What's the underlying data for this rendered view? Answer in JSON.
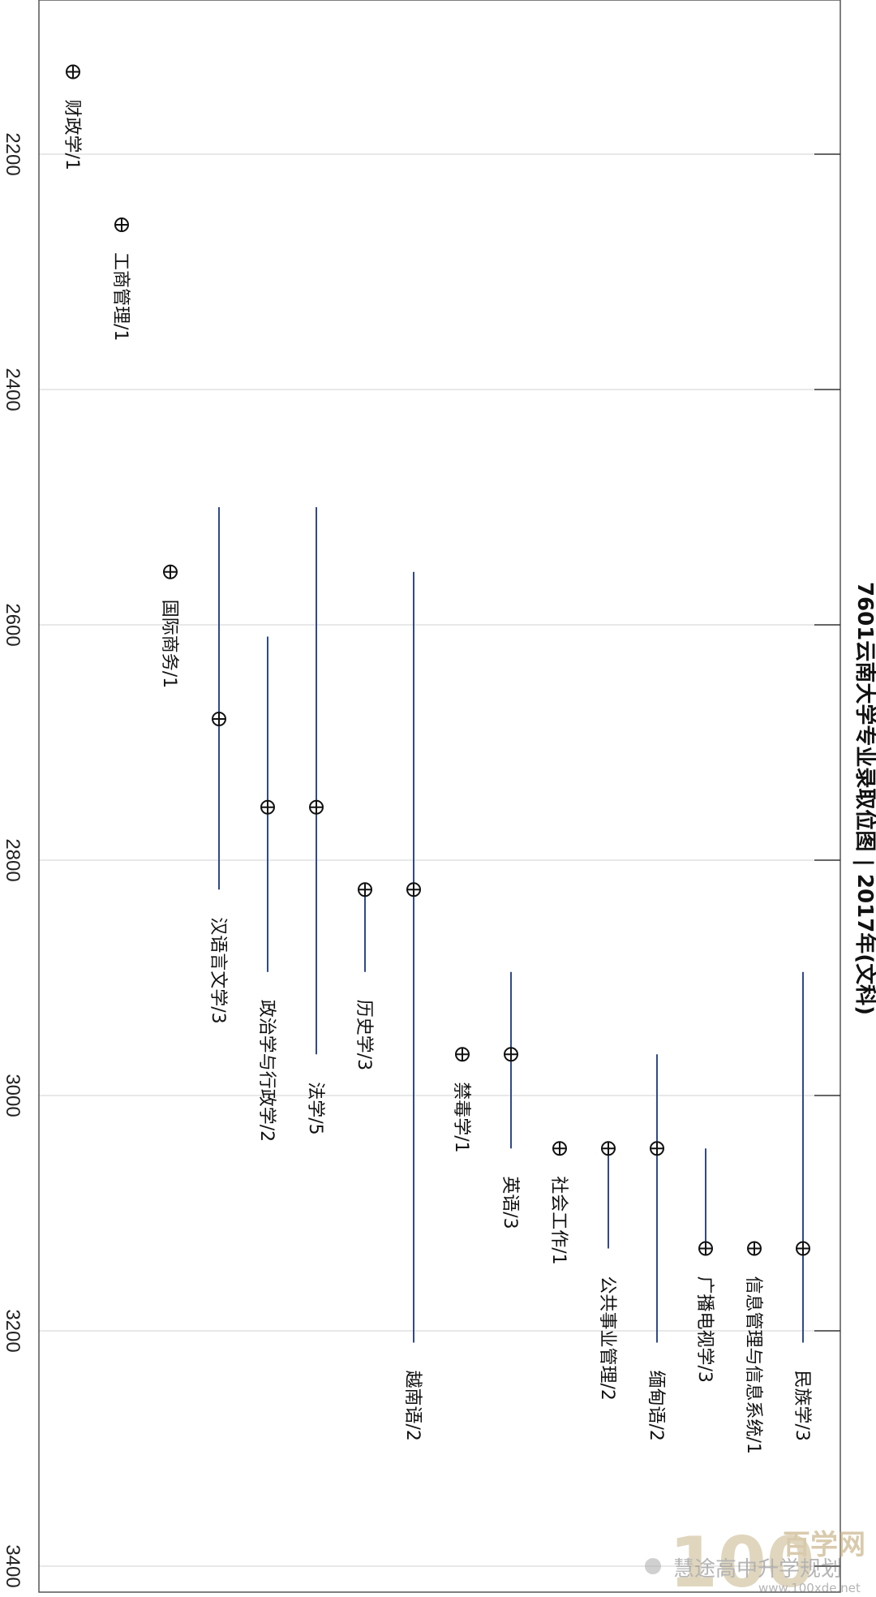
{
  "chart_data": {
    "type": "scatter",
    "title": "7601云南大学专业录取位图 | 2017年(文科)",
    "xlabel": "",
    "ylabel": "",
    "orientation": "rotated-90",
    "value_axis": {
      "range": [
        2060,
        3400
      ],
      "ticks": [
        2200,
        2400,
        2600,
        2800,
        3000,
        3200,
        3400
      ],
      "tick_labels": [
        "2200",
        "2400",
        "2600",
        "2800",
        "3000",
        "3200",
        "3400"
      ]
    },
    "grid": true,
    "legend": "none",
    "marker": "⊕",
    "colors": {
      "range_line": "#2f4a8a",
      "marker": "#111111",
      "grid": "#d0d0d0",
      "frame": "#555555"
    },
    "series": [
      {
        "label": "财政学/1",
        "value": 2130
      },
      {
        "label": "工商管理/1",
        "value": 2260
      },
      {
        "label": "国际商务/1",
        "value": 2555
      },
      {
        "label": "汉语言文学/3",
        "value": 2680,
        "min": 2500,
        "max": 2825
      },
      {
        "label": "政治学与行政学/2",
        "value": 2755,
        "min": 2610,
        "max": 2895
      },
      {
        "label": "法学/5",
        "value": 2755,
        "min": 2500,
        "max": 2965
      },
      {
        "label": "历史学/3",
        "value": 2825,
        "min": 2825,
        "max": 2895
      },
      {
        "label": "越南语/2",
        "value": 2825,
        "min": 2555,
        "max": 3210
      },
      {
        "label": "禁毒学/1",
        "value": 2965
      },
      {
        "label": "英语/3",
        "value": 2965,
        "min": 2895,
        "max": 3045
      },
      {
        "label": "社会工作/1",
        "value": 3045
      },
      {
        "label": "公共事业管理/2",
        "value": 3045,
        "min": 3045,
        "max": 3130
      },
      {
        "label": "缅甸语/2",
        "value": 3045,
        "min": 2965,
        "max": 3210
      },
      {
        "label": "广播电视学/3",
        "value": 3130,
        "min": 3045,
        "max": 3130
      },
      {
        "label": "信息管理与信息系统/1",
        "value": 3130
      },
      {
        "label": "民族学/3",
        "value": 3130,
        "min": 2895,
        "max": 3210
      }
    ]
  },
  "watermark": {
    "logo_text": "100",
    "cn_text": "百学网",
    "account": "慧途高中升学规划",
    "url": "www.100xde.net"
  }
}
